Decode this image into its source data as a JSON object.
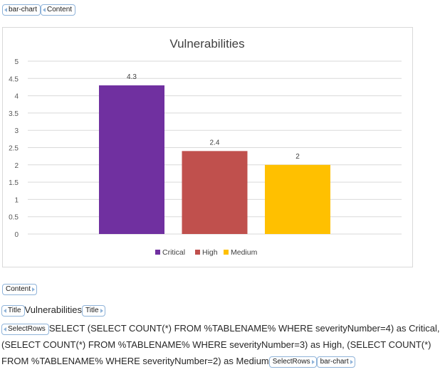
{
  "tags": {
    "bar_chart": "bar-chart",
    "content": "Content",
    "title": "Title",
    "select_rows": "SelectRows"
  },
  "title_text": "Vulnerabilities",
  "query_text": "SELECT (SELECT COUNT(*) FROM %TABLENAME% WHERE severityNumber=4) as Critical, (SELECT COUNT(*) FROM %TABLENAME% WHERE severityNumber=3) as High, (SELECT COUNT(*) FROM %TABLENAME% WHERE severityNumber=2) as Medium",
  "colors": {
    "tag_border": "#8fb3d9",
    "gridline": "#d9d9d9"
  },
  "chart_data": {
    "type": "bar",
    "title": "Vulnerabilities",
    "categories": [
      "Critical",
      "High",
      "Medium"
    ],
    "values": [
      4.3,
      2.4,
      2
    ],
    "data_labels": [
      "4.3",
      "2.4",
      "2"
    ],
    "colors": [
      "#7030a0",
      "#c0504d",
      "#ffc000"
    ],
    "ylim": [
      0,
      5
    ],
    "yticks": [
      "0",
      "0.5",
      "1",
      "1.5",
      "2",
      "2.5",
      "3",
      "3.5",
      "4",
      "4.5",
      "5"
    ],
    "grid": true,
    "legend": "bottom"
  }
}
